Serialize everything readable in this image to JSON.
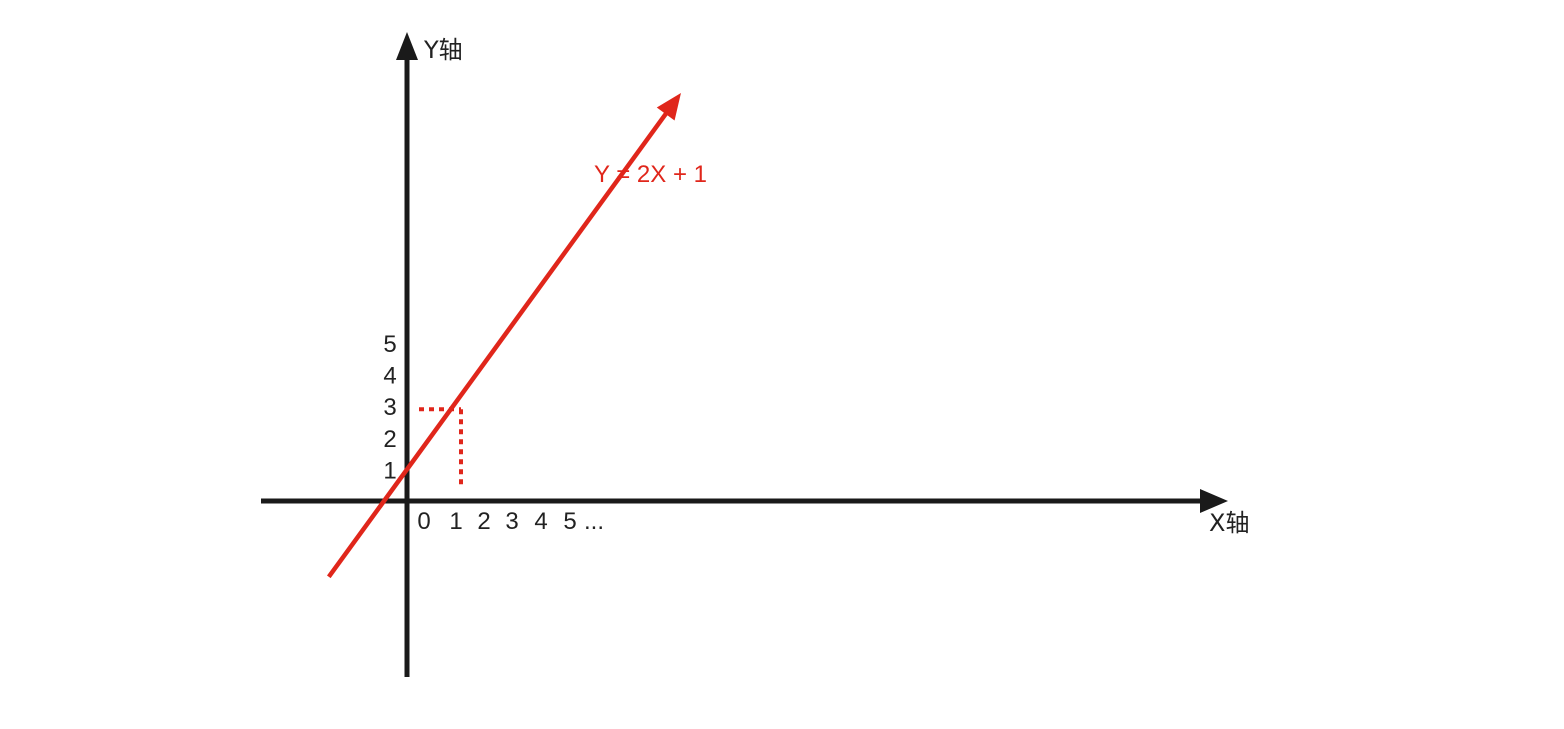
{
  "chart_data": {
    "type": "line",
    "title": "",
    "xlabel": "X轴",
    "ylabel": "Y轴",
    "x_tick_labels": [
      "0",
      "1",
      "2",
      "3",
      "4",
      "5",
      "..."
    ],
    "y_tick_labels": [
      "1",
      "2",
      "3",
      "4",
      "5"
    ],
    "series": [
      {
        "name": "Y = 2X + 1",
        "equation": "Y = 2X + 1",
        "slope": 2,
        "intercept": 1,
        "x": [
          -1.7,
          5.7
        ],
        "y": [
          -2.4,
          12.4
        ]
      }
    ],
    "highlight_point": {
      "x": 1,
      "y": 3
    },
    "colors": {
      "axis": "#1a1a1a",
      "line": "#e0261b",
      "guide": "#e0261b",
      "text": "#222222"
    }
  }
}
